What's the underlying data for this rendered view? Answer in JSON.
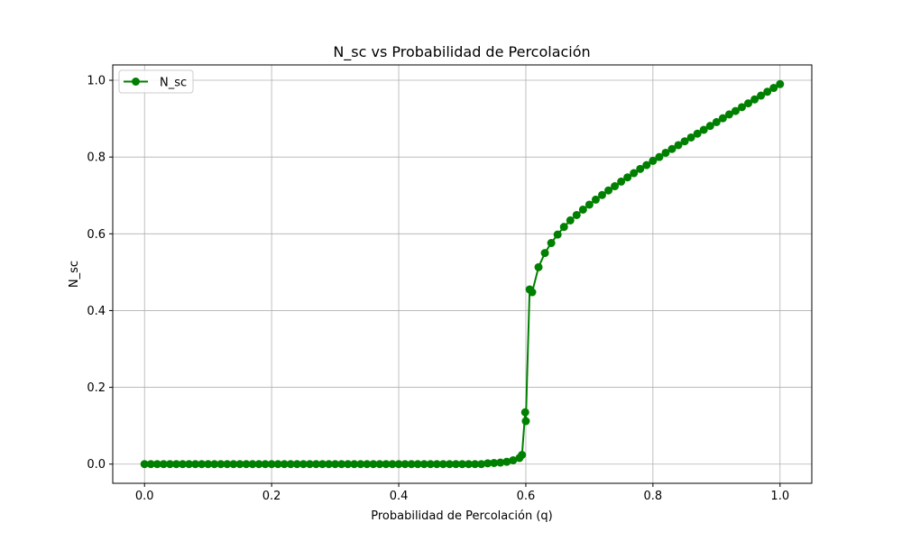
{
  "chart_data": {
    "type": "line",
    "title": "N_sc vs Probabilidad de Percolación",
    "xlabel": "Probabilidad de Percolación (q)",
    "ylabel": "N_sc",
    "xlim": [
      -0.05,
      1.05
    ],
    "ylim": [
      -0.05,
      1.04
    ],
    "x_ticks": [
      "0.0",
      "0.2",
      "0.4",
      "0.6",
      "0.8",
      "1.0"
    ],
    "y_ticks": [
      "0.0",
      "0.2",
      "0.4",
      "0.6",
      "0.8",
      "1.0"
    ],
    "grid": true,
    "legend_position": "top-left",
    "series": [
      {
        "name": "N_sc",
        "color": "#008000",
        "marker": "circle",
        "x": [
          0.0,
          0.01,
          0.02,
          0.03,
          0.04,
          0.05,
          0.06,
          0.07,
          0.08,
          0.09,
          0.1,
          0.11,
          0.12,
          0.13,
          0.14,
          0.15,
          0.16,
          0.17,
          0.18,
          0.19,
          0.2,
          0.21,
          0.22,
          0.23,
          0.24,
          0.25,
          0.26,
          0.27,
          0.28,
          0.29,
          0.3,
          0.31,
          0.32,
          0.33,
          0.34,
          0.35,
          0.36,
          0.37,
          0.38,
          0.39,
          0.4,
          0.41,
          0.42,
          0.43,
          0.44,
          0.45,
          0.46,
          0.47,
          0.48,
          0.49,
          0.5,
          0.51,
          0.52,
          0.53,
          0.54,
          0.55,
          0.56,
          0.57,
          0.58,
          0.59,
          0.6,
          0.61,
          0.62,
          0.63,
          0.64,
          0.65,
          0.66,
          0.67,
          0.68,
          0.69,
          0.7,
          0.71,
          0.72,
          0.73,
          0.74,
          0.75,
          0.76,
          0.77,
          0.78,
          0.79,
          0.8,
          0.81,
          0.82,
          0.83,
          0.84,
          0.85,
          0.86,
          0.87,
          0.88,
          0.89,
          0.9,
          0.91,
          0.92,
          0.93,
          0.94,
          0.95,
          0.96,
          0.97,
          0.98,
          0.99,
          1.0,
          0.594,
          0.599,
          0.606
        ],
        "y": [
          0.0,
          0.0,
          0.0,
          0.0,
          0.0,
          0.0,
          0.0,
          0.0,
          0.0,
          0.0,
          0.0,
          0.0,
          0.0,
          0.0,
          0.0,
          0.0,
          0.0,
          0.0,
          0.0,
          0.0,
          0.0,
          0.0,
          0.0,
          0.0,
          0.0,
          0.0,
          0.0,
          0.0,
          0.0,
          0.0,
          0.0,
          0.0,
          0.0,
          0.0,
          0.0,
          0.0,
          0.0,
          0.0,
          0.0,
          0.0,
          0.0,
          0.0,
          0.0,
          0.0,
          0.0,
          0.0,
          0.0,
          0.0,
          0.0,
          0.0,
          0.0,
          0.0,
          0.0,
          0.0,
          0.002,
          0.003,
          0.004,
          0.006,
          0.01,
          0.016,
          0.112,
          0.448,
          0.513,
          0.55,
          0.576,
          0.598,
          0.618,
          0.635,
          0.649,
          0.663,
          0.676,
          0.689,
          0.701,
          0.713,
          0.724,
          0.736,
          0.747,
          0.758,
          0.769,
          0.779,
          0.79,
          0.8,
          0.811,
          0.821,
          0.831,
          0.841,
          0.851,
          0.861,
          0.871,
          0.881,
          0.891,
          0.901,
          0.911,
          0.92,
          0.93,
          0.94,
          0.95,
          0.96,
          0.97,
          0.98,
          0.99,
          0.024,
          0.135,
          0.455
        ]
      }
    ]
  }
}
